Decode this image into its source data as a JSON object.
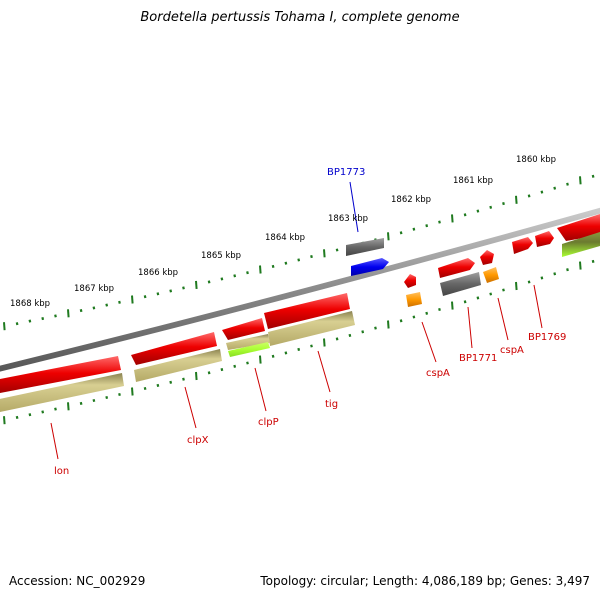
{
  "title": "Bordetella pertussis Tohama I, complete genome",
  "footer": {
    "accession": "Accession: NC_002929",
    "summary": "Topology: circular; Length: 4,086,189 bp; Genes: 3,497"
  },
  "colors": {
    "backbone": "#8a8a8a",
    "tick": "#1f7a1f",
    "cds": "#ee0000",
    "label_red": "#cc0000",
    "label_blue": "#0000cc",
    "blue_feature": "#0000ee",
    "orange_feature": "#ff9900",
    "gray_feature": "#666666",
    "khaki_feature": "#c8bd7a",
    "lime_feature": "#aaff33"
  },
  "kbp_labels": [
    "1868 kbp",
    "1867 kbp",
    "1866 kbp",
    "1865 kbp",
    "1864 kbp",
    "1863 kbp",
    "1862 kbp",
    "1861 kbp",
    "1860 kbp"
  ],
  "gene_labels": [
    "lon",
    "clpX",
    "clpP",
    "tig",
    "cspA",
    "BP1771",
    "cspA",
    "BP1769",
    "BP1773"
  ]
}
